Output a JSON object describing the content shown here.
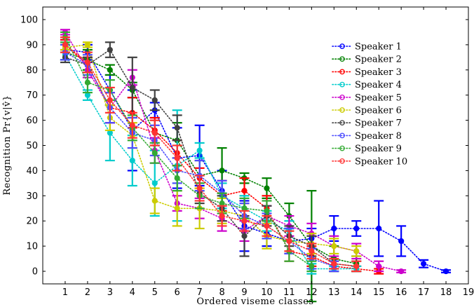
{
  "chart_data": {
    "type": "line",
    "style": "dotted lines with circle markers and error bars",
    "xlabel": "Ordered viseme classes",
    "ylabel": "Recognition Pr{v|v̂}",
    "xlim": [
      0,
      19
    ],
    "ylim": [
      -5,
      105
    ],
    "xticks": [
      1,
      2,
      3,
      4,
      5,
      6,
      7,
      8,
      9,
      10,
      11,
      12,
      13,
      14,
      15,
      16,
      17,
      18,
      19
    ],
    "yticks": [
      0,
      10,
      20,
      30,
      40,
      50,
      60,
      70,
      80,
      90,
      100
    ],
    "legend_position": "top-right",
    "series": [
      {
        "name": "Speaker 1",
        "color": "#0000ff",
        "x": [
          1,
          2,
          3,
          4,
          5,
          6,
          7,
          8,
          9,
          10,
          11,
          12,
          13,
          14,
          15,
          16,
          17,
          18
        ],
        "y": [
          88,
          87,
          72,
          56,
          64,
          45,
          46,
          32,
          18,
          15,
          12,
          13,
          17,
          17,
          17,
          12,
          3,
          0
        ],
        "err": [
          4,
          3,
          6,
          16,
          3,
          12,
          12,
          8,
          10,
          5,
          5,
          4,
          5,
          3,
          11,
          6,
          1.5,
          0.5
        ]
      },
      {
        "name": "Speaker 2",
        "color": "#008000",
        "x": [
          1,
          2,
          3,
          4,
          5,
          6,
          7,
          8,
          9,
          10,
          11,
          12,
          13,
          14
        ],
        "y": [
          87,
          84,
          80,
          72,
          55,
          52,
          38,
          40,
          37,
          33,
          22,
          10,
          5,
          3
        ],
        "err": [
          3,
          4,
          2,
          3,
          5,
          7,
          6,
          9,
          2,
          4,
          5,
          22,
          5,
          3
        ]
      },
      {
        "name": "Speaker 3",
        "color": "#ff0000",
        "x": [
          1,
          2,
          3,
          4,
          5,
          6,
          7,
          8,
          9,
          10,
          11,
          12,
          13,
          14,
          15
        ],
        "y": [
          90,
          82,
          65,
          63,
          56,
          47,
          37,
          30,
          32,
          25,
          8,
          6,
          2,
          1,
          0
        ],
        "err": [
          2,
          3,
          6,
          6,
          5,
          5,
          4,
          6,
          5,
          5,
          4,
          4,
          2,
          1,
          1
        ]
      },
      {
        "name": "Speaker 4",
        "color": "#00cccc",
        "x": [
          1,
          2,
          3,
          4,
          5,
          6,
          7,
          8,
          9,
          10,
          11,
          12,
          13,
          14
        ],
        "y": [
          86,
          70,
          55,
          44,
          35,
          42,
          48,
          30,
          25,
          20,
          16,
          1,
          1,
          1
        ],
        "err": [
          2,
          2,
          11,
          10,
          13,
          22,
          3,
          5,
          5,
          4,
          4,
          2,
          1,
          1
        ]
      },
      {
        "name": "Speaker 5",
        "color": "#cc00cc",
        "x": [
          1,
          2,
          3,
          4,
          5,
          6,
          7,
          8,
          9,
          10,
          11,
          12,
          13,
          14,
          15,
          16
        ],
        "y": [
          95,
          80,
          65,
          77,
          48,
          27,
          25,
          21,
          16,
          22,
          18,
          15,
          10,
          8,
          2,
          0
        ],
        "err": [
          1,
          3,
          6,
          3,
          5,
          3,
          4,
          5,
          4,
          4,
          4,
          4,
          4,
          3,
          2,
          0.5
        ]
      },
      {
        "name": "Speaker 6",
        "color": "#cccc00",
        "x": [
          1,
          2,
          3,
          4,
          5,
          6,
          7,
          8,
          9,
          10,
          11,
          12,
          13,
          14
        ],
        "y": [
          89,
          90,
          61,
          54,
          28,
          25,
          25,
          24,
          22,
          14,
          12,
          11,
          10,
          8
        ],
        "err": [
          1,
          1,
          5,
          5,
          5,
          7,
          8,
          5,
          5,
          5,
          4,
          4,
          3,
          2
        ]
      },
      {
        "name": "Speaker 7",
        "color": "#404040",
        "x": [
          1,
          2,
          3,
          4,
          5,
          6,
          7,
          8,
          9,
          10,
          11,
          12,
          13,
          14
        ],
        "y": [
          85,
          82,
          88,
          73,
          68,
          57,
          31,
          25,
          14,
          22,
          14,
          10,
          3,
          2
        ],
        "err": [
          2,
          3,
          3,
          12,
          4,
          5,
          4,
          5,
          8,
          4,
          4,
          4,
          2,
          2
        ]
      },
      {
        "name": "Speaker 8",
        "color": "#4d4dff",
        "x": [
          1,
          2,
          3,
          4,
          5,
          6,
          7,
          8,
          9,
          10,
          11,
          12,
          13
        ],
        "y": [
          87,
          82,
          65,
          55,
          52,
          40,
          38,
          31,
          22,
          18,
          12,
          5,
          2
        ],
        "err": [
          3,
          4,
          6,
          6,
          6,
          5,
          6,
          5,
          5,
          5,
          5,
          4,
          2
        ]
      },
      {
        "name": "Speaker 9",
        "color": "#33aa33",
        "x": [
          1,
          2,
          3,
          4,
          5,
          6,
          7,
          8,
          9,
          10,
          11,
          12
        ],
        "y": [
          93,
          75,
          72,
          57,
          47,
          37,
          30,
          27,
          25,
          24,
          8,
          2
        ],
        "err": [
          2,
          4,
          4,
          5,
          4,
          5,
          5,
          4,
          4,
          4,
          4,
          2
        ]
      },
      {
        "name": "Speaker 10",
        "color": "#ff3333",
        "x": [
          1,
          2,
          3,
          4,
          5,
          6,
          7,
          8,
          9,
          10,
          11,
          12,
          13,
          14
        ],
        "y": [
          90,
          83,
          68,
          58,
          55,
          45,
          33,
          22,
          20,
          18,
          12,
          8,
          3,
          2
        ],
        "err": [
          3,
          4,
          5,
          5,
          5,
          5,
          5,
          4,
          4,
          4,
          4,
          3,
          2,
          2
        ]
      }
    ]
  }
}
